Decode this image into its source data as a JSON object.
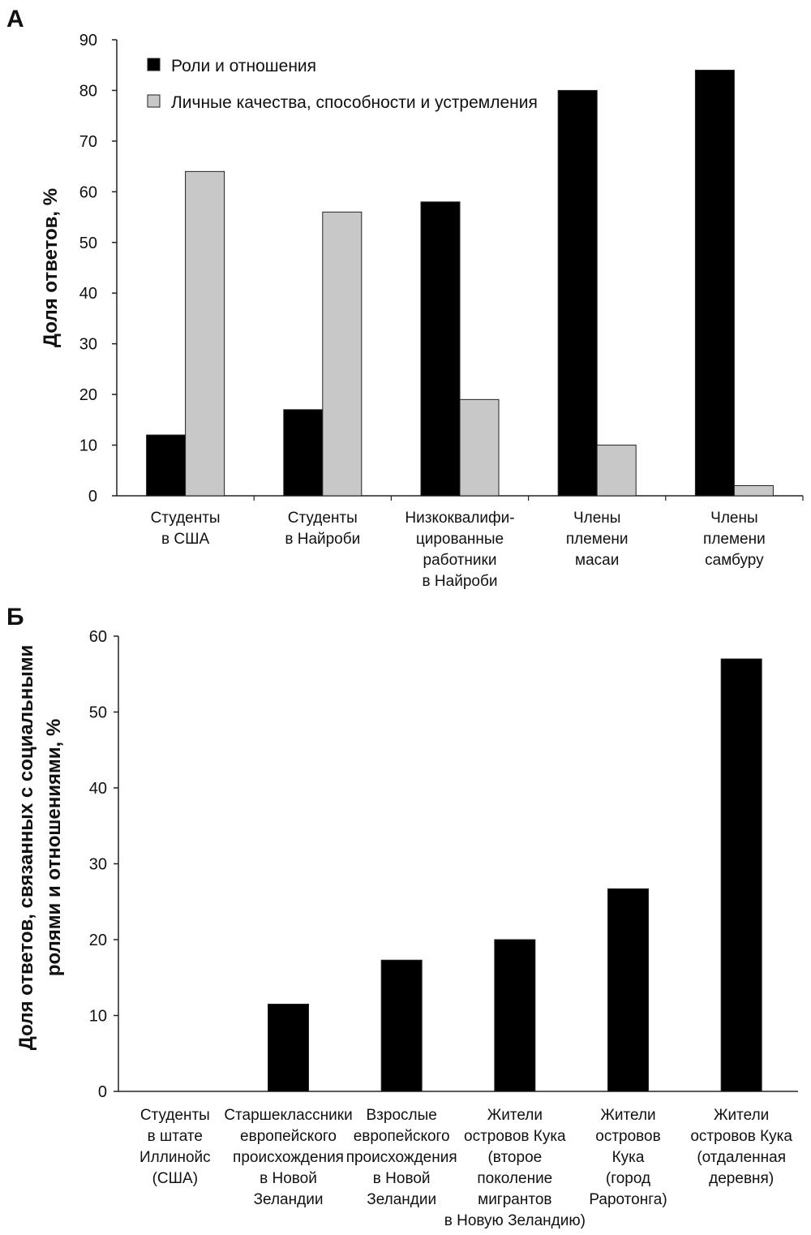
{
  "chart_data": [
    {
      "panel": "А",
      "type": "bar",
      "ylabel": "Доля ответов, %",
      "ylim": [
        0,
        90
      ],
      "yticks": [
        0,
        10,
        20,
        30,
        40,
        50,
        60,
        70,
        80,
        90
      ],
      "legend_position": "top-left",
      "categories": [
        [
          "Студенты",
          "в США"
        ],
        [
          "Студенты",
          "в Найроби"
        ],
        [
          "Низкоквалифи-",
          "цированные",
          "работники",
          "в Найроби"
        ],
        [
          "Члены",
          "племени",
          "масаи"
        ],
        [
          "Члены",
          "племени",
          "самбуру"
        ]
      ],
      "series": [
        {
          "name": "Роли и отношения",
          "color": "#000000",
          "values": [
            12,
            17,
            58,
            80,
            84
          ]
        },
        {
          "name": "Личные качества, способности и устремления",
          "color": "#c8c8c8",
          "values": [
            64,
            56,
            19,
            10,
            2
          ]
        }
      ]
    },
    {
      "panel": "Б",
      "type": "bar",
      "ylabel": [
        "Доля ответов, связанных с социальными",
        "ролями и отношениями, %"
      ],
      "ylim": [
        0,
        60
      ],
      "yticks": [
        0,
        10,
        20,
        30,
        40,
        50,
        60
      ],
      "categories": [
        [
          "Студенты",
          "в штате",
          "Иллинойс",
          "(США)"
        ],
        [
          "Старшеклассники",
          "европейского",
          "происхождения",
          "в Новой",
          "Зеландии"
        ],
        [
          "Взрослые",
          "европейского",
          "происхождения",
          "в Новой",
          "Зеландии"
        ],
        [
          "Жители",
          "островов Кука",
          "(второе",
          "поколение",
          "мигрантов",
          "в Новую Зеландию)"
        ],
        [
          "Жители",
          "островов",
          "Кука",
          "(город",
          "Раротонга)"
        ],
        [
          "Жители",
          "островов Кука",
          "(отдаленная",
          "деревня)"
        ]
      ],
      "series": [
        {
          "color": "#000000",
          "values": [
            0,
            11.5,
            17.3,
            20,
            26.7,
            57
          ]
        }
      ]
    }
  ]
}
